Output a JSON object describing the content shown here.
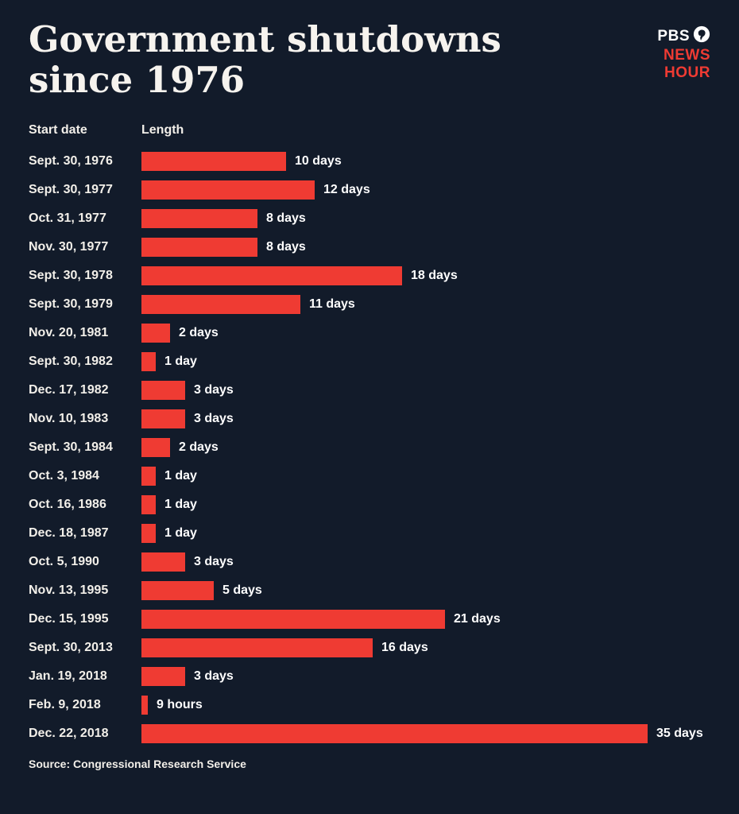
{
  "header": {
    "title_line1": "Government shutdowns",
    "title_line2": "since 1976",
    "logo": {
      "pbs": "PBS",
      "news": "NEWS",
      "hour": "HOUR",
      "accent_color": "#ef3b33"
    }
  },
  "chart_data": {
    "type": "bar",
    "orientation": "horizontal",
    "title": "Government shutdowns since 1976",
    "col_headers": [
      "Start date",
      "Length"
    ],
    "categories": [
      "Sept. 30, 1976",
      "Sept. 30, 1977",
      "Oct. 31, 1977",
      "Nov. 30, 1977",
      "Sept. 30, 1978",
      "Sept. 30, 1979",
      "Nov. 20, 1981",
      "Sept. 30, 1982",
      "Dec. 17, 1982",
      "Nov. 10, 1983",
      "Sept. 30, 1984",
      "Oct. 3, 1984",
      "Oct. 16, 1986",
      "Dec. 18, 1987",
      "Oct. 5, 1990",
      "Nov. 13, 1995",
      "Dec. 15, 1995",
      "Sept. 30, 2013",
      "Jan. 19, 2018",
      "Feb. 9, 2018",
      "Dec. 22, 2018"
    ],
    "values": [
      10,
      12,
      8,
      8,
      18,
      11,
      2,
      1,
      3,
      3,
      2,
      1,
      1,
      1,
      3,
      5,
      21,
      16,
      3,
      0.375,
      35
    ],
    "value_labels": [
      "10 days",
      "12 days",
      "8 days",
      "8 days",
      "18 days",
      "11 days",
      "2 days",
      "1 day",
      "3 days",
      "3 days",
      "2 days",
      "1 day",
      "1 day",
      "1 day",
      "3 days",
      "5 days",
      "21 days",
      "16 days",
      "3 days",
      "9 hours",
      "35 days"
    ],
    "xlim": [
      0,
      35
    ],
    "bar_color": "#ef3b33",
    "background_color": "#121b2a",
    "legend": "none",
    "grid": false,
    "source": "Source: Congressional Research Service"
  }
}
